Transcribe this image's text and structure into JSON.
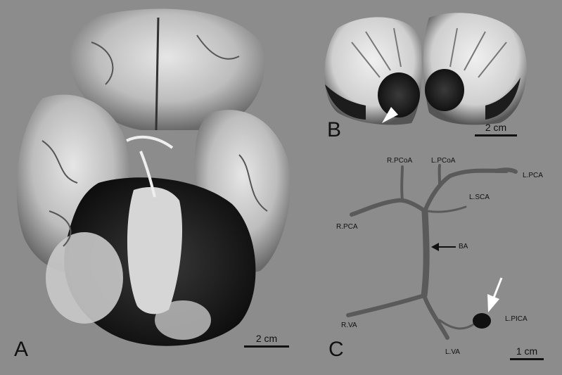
{
  "panels": {
    "a": {
      "letter": "A",
      "scale": "2 cm"
    },
    "b": {
      "letter": "B",
      "scale": "2 cm"
    },
    "c": {
      "letter": "C",
      "scale": "1 cm"
    }
  },
  "vessel_labels": {
    "r_pcoa": "R.PCoA",
    "l_pcoa": "L.PCoA",
    "l_pca": "L.PCA",
    "l_sca": "L.SCA",
    "r_pca": "R.PCA",
    "ba": "BA",
    "r_va": "R.VA",
    "l_va": "L.VA",
    "l_pica": "L.PICA"
  },
  "colors": {
    "background": "#8c8c8c",
    "tissue_light": "#d9d9d9",
    "tissue_dark": "#1e1e1e",
    "vessel": "#5a5a5a"
  }
}
